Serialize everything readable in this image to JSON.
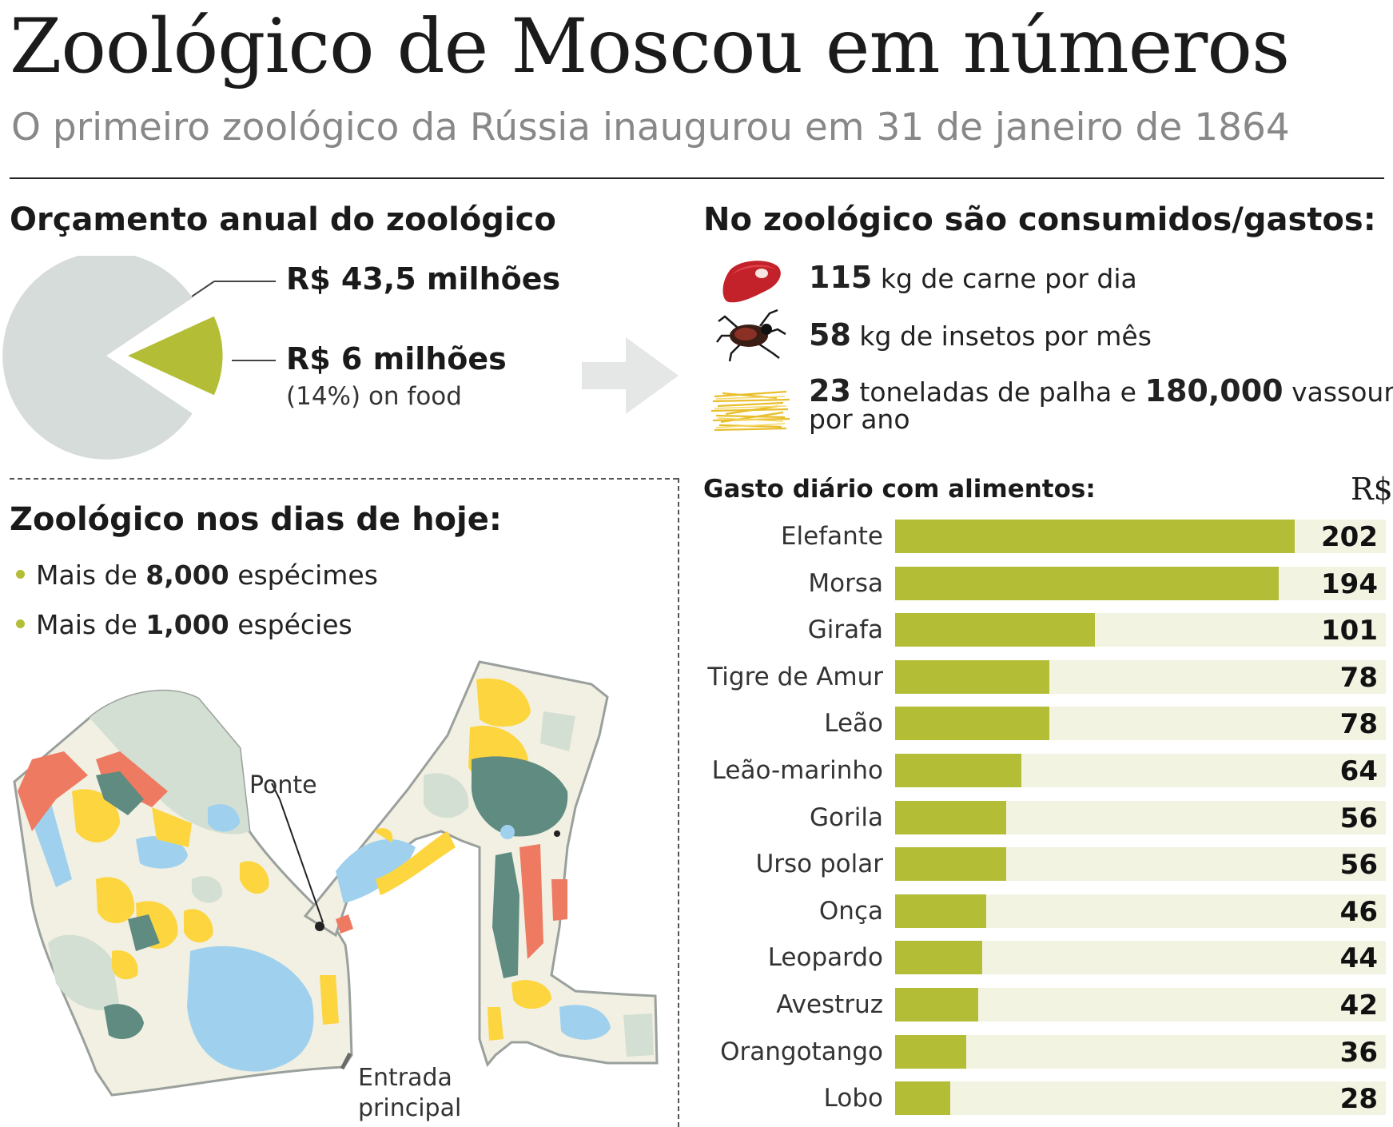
{
  "header": {
    "title": "Zoológico de Moscou em números",
    "subtitle": "O primeiro zoológico da Rússia inaugurou em 31 de janeiro de 1864"
  },
  "budget": {
    "heading": "Orçamento anual do zoológico",
    "total_label": "R$ 43,5 milhões",
    "food_label": "R$ 6 milhões",
    "food_note": "(14%) on food",
    "food_share_percent": 14,
    "colors": {
      "total": "#d6dcd9",
      "food": "#b3be36"
    }
  },
  "consumption": {
    "heading": "No zoológico são consumidos/gastos:",
    "items": [
      {
        "icon": "meat-icon",
        "value": "115",
        "text": "kg de carne por dia"
      },
      {
        "icon": "insect-icon",
        "value": "58",
        "text": "kg de insetos por mês"
      },
      {
        "icon": "straw-icon",
        "value": "23",
        "text": "toneladas de palha e",
        "value2": "180,000",
        "text2": "vassouras",
        "text3": "por ano"
      }
    ]
  },
  "today": {
    "heading": "Zoológico nos dias de hoje:",
    "bullets": [
      {
        "prefix": "Mais de ",
        "value": "8,000",
        "suffix": "espécimes"
      },
      {
        "prefix": "Mais de ",
        "value": "1,000",
        "suffix": "espécies"
      }
    ]
  },
  "map": {
    "bridge_label": "Ponte",
    "entrance_label_1": "Entrada",
    "entrance_label_2": "principal",
    "colors": {
      "ground": "#f1f0e2",
      "park": "#d3dfd2",
      "water": "#9fd1ee",
      "yellow": "#fdd53f",
      "teal": "#5f8b80",
      "red": "#ee7a62",
      "outline": "#9aa09c"
    }
  },
  "chart_data": {
    "type": "bar",
    "orientation": "horizontal",
    "title": "Gasto diário com alimentos:",
    "unit": "R$",
    "categories": [
      "Elefante",
      "Morsa",
      "Girafa",
      "Tigre de Amur",
      "Leão",
      "Leão-marinho",
      "Gorila",
      "Urso polar",
      "Onça",
      "Leopardo",
      "Avestruz",
      "Orangotango",
      "Lobo"
    ],
    "values": [
      202,
      194,
      101,
      78,
      78,
      64,
      56,
      56,
      46,
      44,
      42,
      36,
      28
    ],
    "xlim": [
      0,
      248
    ],
    "colors": {
      "bar": "#b3be36",
      "track": "#f3f3e1"
    }
  }
}
